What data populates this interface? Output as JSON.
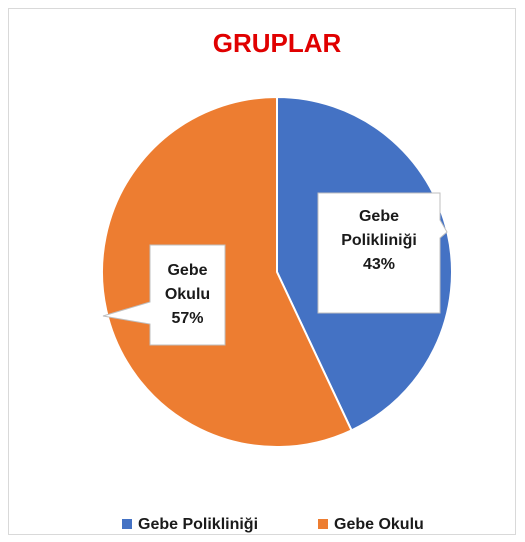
{
  "chart_data": {
    "type": "pie",
    "title": "GRUPLAR",
    "categories": [
      "Gebe Polikliniği",
      "Gebe Okulu"
    ],
    "values": [
      43,
      57
    ],
    "value_labels": [
      "43%",
      "57%"
    ],
    "colors": [
      "#4472c4",
      "#ed7d31"
    ],
    "legend": "bottom"
  }
}
